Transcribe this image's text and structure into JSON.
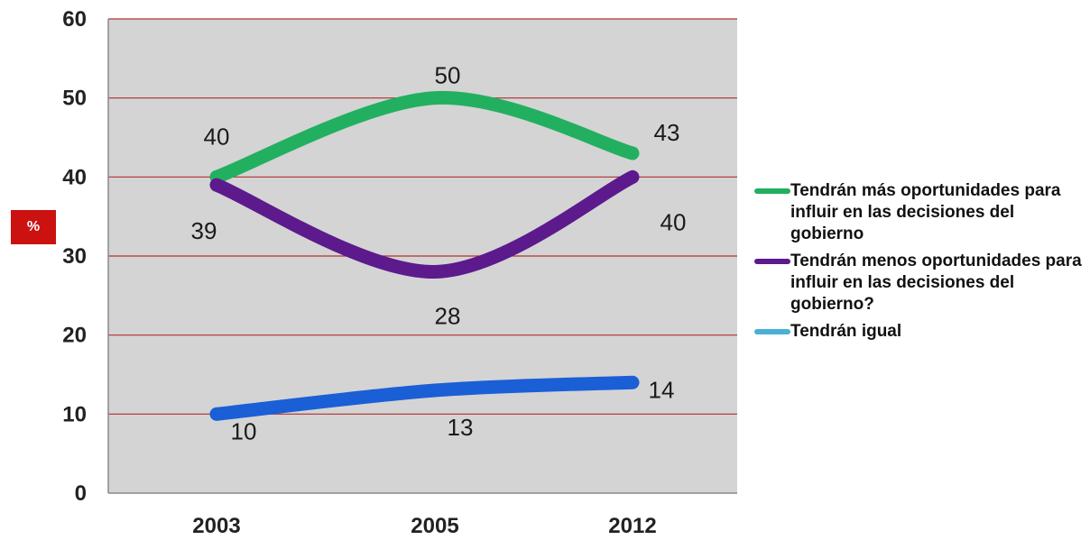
{
  "chart_data": {
    "type": "line",
    "categories": [
      "2003",
      "2005",
      "2012"
    ],
    "ylabel": "%",
    "ylim": [
      0,
      60
    ],
    "yticks": [
      "0",
      "10",
      "20",
      "30",
      "40",
      "50",
      "60"
    ],
    "grid": true,
    "legend_position": "right",
    "series": [
      {
        "name": "Tendrán más oportunidades para influir en las decisiones del gobierno",
        "values": [
          40,
          50,
          43
        ],
        "labels": [
          "40",
          "50",
          "43"
        ],
        "color": "#22b060"
      },
      {
        "name": "Tendrán menos oportunidades para influir en las decisiones del gobierno?",
        "values": [
          39,
          28,
          40
        ],
        "labels": [
          "39",
          "28",
          "40"
        ],
        "color": "#5c1a8c"
      },
      {
        "name": "Tendrán igual",
        "values": [
          10,
          13,
          14
        ],
        "labels": [
          "10",
          "13",
          "14"
        ],
        "color": "#1a5fd6",
        "legend_color": "#4ab0d4"
      }
    ]
  },
  "colors": {
    "plot_background": "#d4d4d4",
    "grid_line": "#b03030"
  }
}
